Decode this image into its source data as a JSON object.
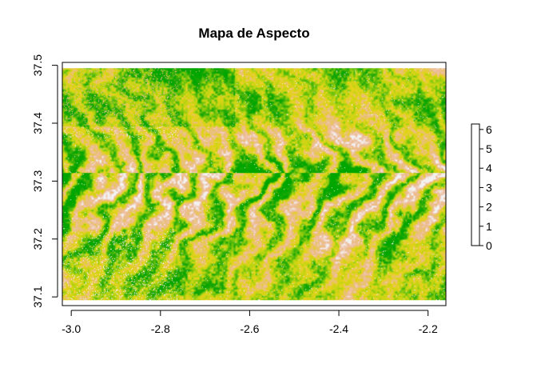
{
  "chart_data": {
    "type": "heatmap",
    "title": "Mapa de Aspecto",
    "xlabel": "",
    "ylabel": "",
    "xlim": [
      -3.02,
      -2.16
    ],
    "ylim": [
      37.085,
      37.505
    ],
    "x_ticks": [
      {
        "value": -3.0,
        "label": "-3.0"
      },
      {
        "value": -2.8,
        "label": "-2.8"
      },
      {
        "value": -2.6,
        "label": "-2.6"
      },
      {
        "value": -2.4,
        "label": "-2.4"
      },
      {
        "value": -2.2,
        "label": "-2.2"
      }
    ],
    "y_ticks": [
      {
        "value": 37.1,
        "label": "37.1"
      },
      {
        "value": 37.2,
        "label": "37.2"
      },
      {
        "value": 37.3,
        "label": "37.3"
      },
      {
        "value": 37.4,
        "label": "37.4"
      },
      {
        "value": 37.5,
        "label": "37.5"
      }
    ],
    "raster_extent": {
      "xmin": -3.02,
      "xmax": -2.16,
      "ymin": 37.095,
      "ymax": 37.495
    },
    "legend": {
      "placement": "right",
      "min": 0,
      "max": 6.283,
      "ticks": [
        {
          "value": 0,
          "label": "0"
        },
        {
          "value": 1,
          "label": "1"
        },
        {
          "value": 2,
          "label": "2"
        },
        {
          "value": 3,
          "label": "3"
        },
        {
          "value": 4,
          "label": "4"
        },
        {
          "value": 5,
          "label": "5"
        },
        {
          "value": 6,
          "label": "6"
        }
      ],
      "colors": [
        "#f2f2f2",
        "#eebd9e",
        "#e9c173",
        "#e6d21a",
        "#bfd512",
        "#6ec30c",
        "#1fa708",
        "#00a600"
      ]
    }
  }
}
